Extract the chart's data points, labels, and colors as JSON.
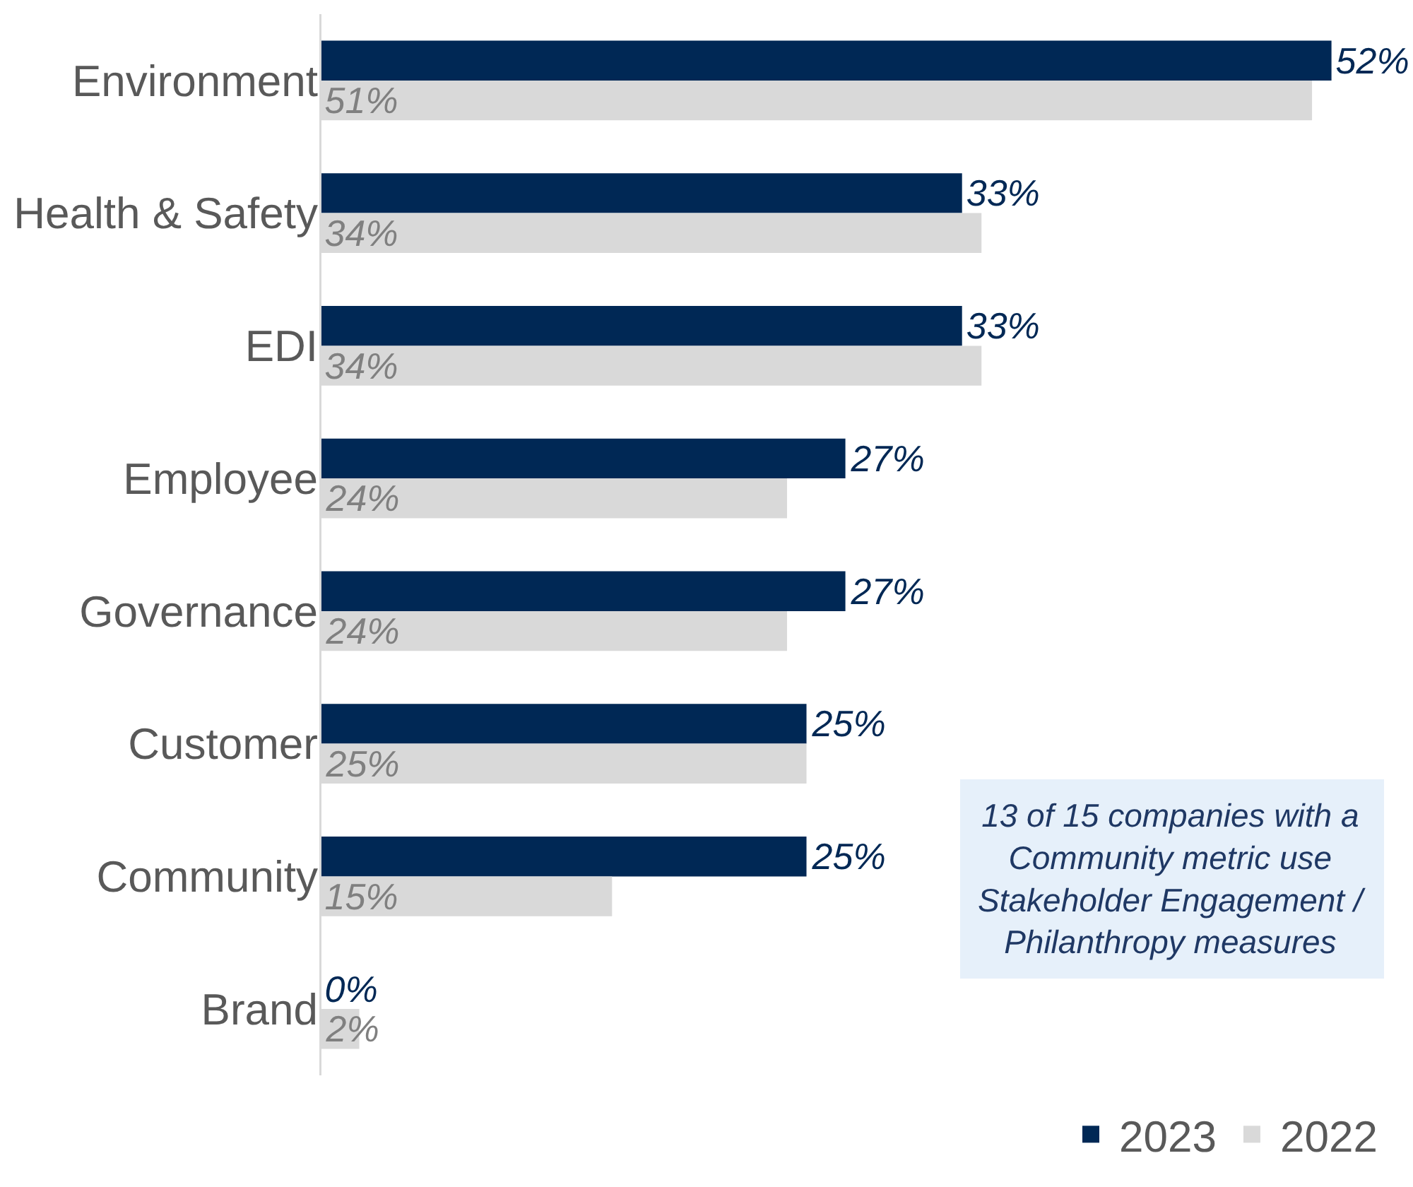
{
  "chart_data": {
    "type": "bar",
    "orientation": "horizontal",
    "categories": [
      "Environment",
      "Health & Safety",
      "EDI",
      "Employee",
      "Governance",
      "Customer",
      "Community",
      "Brand"
    ],
    "series": [
      {
        "name": "2023",
        "color": "#002855",
        "values": [
          52,
          33,
          33,
          27,
          27,
          25,
          25,
          0
        ],
        "value_labels": [
          "52%",
          "33%",
          "33%",
          "27%",
          "27%",
          "25%",
          "25%",
          "0%"
        ]
      },
      {
        "name": "2022",
        "color": "#d9d9d9",
        "values": [
          51,
          34,
          34,
          24,
          24,
          25,
          15,
          2
        ],
        "value_labels": [
          "51%",
          "34%",
          "34%",
          "24%",
          "24%",
          "25%",
          "15%",
          "2%"
        ]
      }
    ],
    "tick_labels": "y",
    "grid": false,
    "legend": "bottom right",
    "annotations": [
      "13 of 15 companies with a\nCommunity metric use\nStakeholder Engagement /\nPhilanthropy measures"
    ]
  }
}
